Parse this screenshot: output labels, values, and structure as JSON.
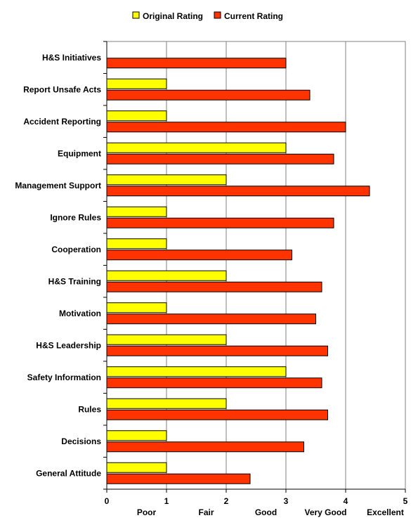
{
  "chart_data": {
    "type": "bar",
    "orientation": "horizontal",
    "categories": [
      "H&S Initiatives",
      "Report Unsafe Acts",
      "Accident Reporting",
      "Equipment",
      "Management Support",
      "Ignore Rules",
      "Cooperation",
      "H&S Training",
      "Motivation",
      "H&S Leadership",
      "Safety Information",
      "Rules",
      "Decisions",
      "General Attitude"
    ],
    "series": [
      {
        "name": "Original Rating",
        "color": "#ffff00",
        "values": [
          null,
          1,
          1,
          3,
          2,
          1,
          1,
          2,
          1,
          2,
          3,
          2,
          1,
          1
        ]
      },
      {
        "name": "Current Rating",
        "color": "#ff3300",
        "values": [
          3,
          3.4,
          4,
          3.8,
          4.4,
          3.8,
          3.1,
          3.6,
          3.5,
          3.7,
          3.6,
          3.7,
          3.3,
          2.4
        ]
      }
    ],
    "xlim": [
      0,
      5
    ],
    "x_ticks": [
      "0",
      "1",
      "2",
      "3",
      "4",
      "5"
    ],
    "rating_labels": [
      "Poor",
      "Fair",
      "Good",
      "Very Good",
      "Excellent"
    ],
    "grid": "vertical",
    "legend": "top"
  }
}
